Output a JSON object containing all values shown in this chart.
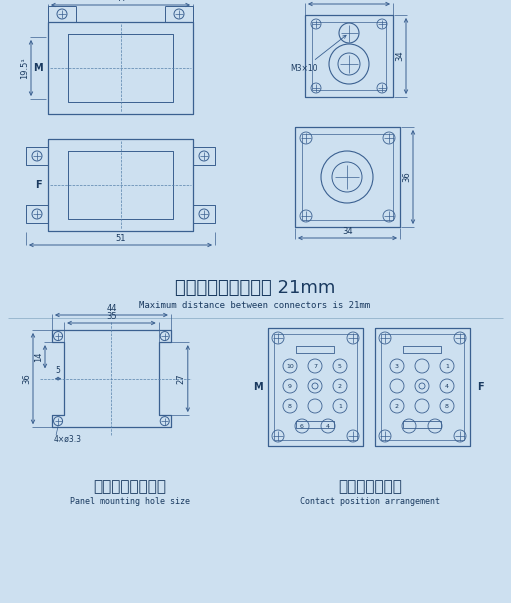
{
  "background_color": "#cde0f0",
  "line_color": "#3a6090",
  "dim_color": "#3a6090",
  "text_color": "#1a3a60",
  "title_cn_top": "接插体之间最大距离 21mm",
  "title_en_top": "Maximum distance between connectors is 21mm",
  "title_cn_bottom_left": "面板安装开孔尺寸",
  "title_en_bottom_left": "Panel mounting hole size",
  "title_cn_bottom_right": "接触面孔位排布",
  "title_en_bottom_right": "Contact position arrangement"
}
